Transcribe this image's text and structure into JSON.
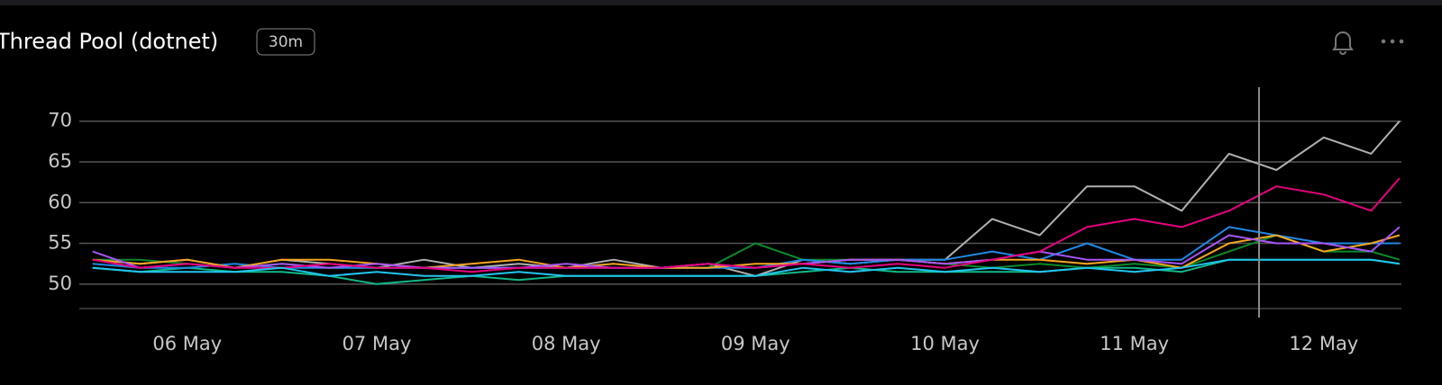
{
  "header": {
    "title": "Thread Pool (dotnet)",
    "badge": "30m"
  },
  "chart_data": {
    "type": "line",
    "x": [
      5.5,
      5.75,
      6,
      6.25,
      6.5,
      6.75,
      7,
      7.25,
      7.5,
      7.75,
      8,
      8.25,
      8.5,
      8.75,
      9,
      9.25,
      9.5,
      9.75,
      10,
      10.25,
      10.5,
      10.75,
      11,
      11.25,
      11.5,
      11.75,
      12,
      12.25,
      12.4
    ],
    "xlim": [
      5.43,
      12.41
    ],
    "xticks": [
      {
        "value": 6,
        "label": "06 May"
      },
      {
        "value": 7,
        "label": "07 May"
      },
      {
        "value": 8,
        "label": "08 May"
      },
      {
        "value": 9,
        "label": "09 May"
      },
      {
        "value": 10,
        "label": "10 May"
      },
      {
        "value": 11,
        "label": "11 May"
      },
      {
        "value": 12,
        "label": "12 May"
      }
    ],
    "ylim": [
      47,
      73.5
    ],
    "yticks": [
      50,
      55,
      60,
      65,
      70
    ],
    "grid": true,
    "series": [
      {
        "color": "#b0b0b0",
        "values": [
          53,
          52.5,
          53,
          52,
          53,
          52.5,
          52,
          53,
          52,
          52.5,
          52,
          53,
          52,
          52.5,
          51,
          53,
          52.5,
          53,
          53,
          58,
          56,
          62,
          62,
          59,
          66,
          64,
          68,
          66,
          70
        ]
      },
      {
        "color": "#0a8a2a",
        "values": [
          53,
          53,
          52.5,
          52,
          52.5,
          52,
          52,
          52,
          52,
          52,
          52,
          52,
          52,
          52,
          55,
          53,
          53,
          53,
          52.5,
          52,
          52.5,
          52,
          52.5,
          52,
          54,
          56,
          54,
          54,
          53
        ]
      },
      {
        "color": "#10b989",
        "values": [
          52,
          51.5,
          52,
          51.5,
          51.5,
          51,
          50,
          50.5,
          51,
          50.5,
          51,
          51,
          51,
          51,
          51,
          51.5,
          52,
          51.5,
          51.5,
          51.5,
          51.5,
          52,
          52,
          51.5,
          53,
          53,
          53,
          53,
          52.5
        ]
      },
      {
        "color": "#1e88e5",
        "values": [
          52.5,
          52,
          52,
          52.5,
          52,
          52,
          52,
          52,
          52,
          52,
          52,
          52,
          52,
          52,
          52,
          53,
          52.5,
          53,
          53,
          54,
          53,
          55,
          53,
          53,
          57,
          56,
          55,
          55,
          55
        ]
      },
      {
        "color": "#f5a623",
        "values": [
          53,
          52.5,
          53,
          52,
          53,
          53,
          52.5,
          52,
          52.5,
          53,
          52,
          52.5,
          52,
          52,
          52.5,
          52.5,
          53,
          53,
          52.5,
          53,
          53,
          52.5,
          53,
          52,
          55,
          56,
          54,
          55,
          56
        ]
      },
      {
        "color": "#a855f7",
        "values": [
          54,
          52,
          52.5,
          52,
          52.5,
          52,
          52.5,
          52,
          52,
          52,
          52.5,
          52,
          52,
          52.5,
          52,
          52.5,
          53,
          53,
          52.5,
          53,
          54,
          53,
          53,
          52.5,
          56,
          55,
          55,
          54,
          57
        ]
      },
      {
        "color": "#e6007e",
        "values": [
          53,
          52,
          52.5,
          52,
          52,
          52.5,
          52,
          52,
          51.5,
          52,
          52,
          52,
          52,
          52.5,
          52,
          52.5,
          52,
          52.5,
          52,
          53,
          54,
          57,
          58,
          57,
          59,
          62,
          61,
          59,
          63
        ]
      },
      {
        "color": "#22c5f0",
        "values": [
          52,
          51.5,
          51.5,
          51.5,
          52,
          51,
          51.5,
          51,
          51,
          51.5,
          51,
          51,
          51,
          51,
          51,
          52,
          51.5,
          52,
          51.5,
          52,
          51.5,
          52,
          51.5,
          52,
          53,
          53,
          53,
          53,
          52.5
        ]
      }
    ]
  }
}
